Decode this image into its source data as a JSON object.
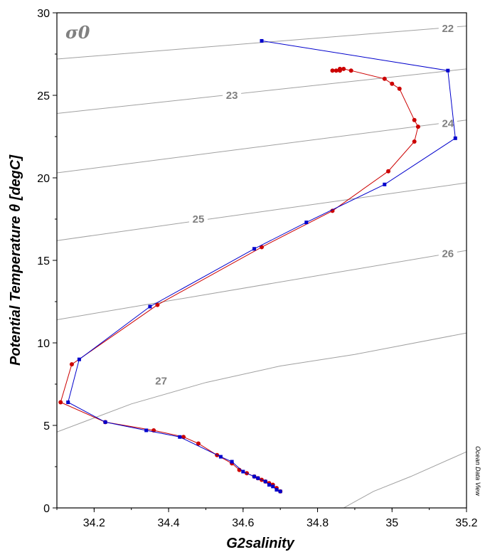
{
  "chart_data": {
    "type": "scatter",
    "xlabel": "G2salinity",
    "ylabel": "Potential Temperature θ [degC]",
    "xlim": [
      34.1,
      35.2
    ],
    "ylim": [
      0,
      30
    ],
    "xticks": [
      34.2,
      34.4,
      34.6,
      34.8,
      35,
      35.2
    ],
    "yticks": [
      0,
      5,
      10,
      15,
      20,
      25,
      30
    ],
    "grid": false,
    "density_label": "σ0",
    "watermark": "Ocean Data View",
    "colors": {
      "contour": "#a0a0a0",
      "contour_label": "#808080",
      "series_red": "#cc0000",
      "series_blue": "#0000cc"
    },
    "contours": [
      {
        "label": "22",
        "points": [
          [
            34.1,
            27.2
          ],
          [
            35.2,
            29.2
          ]
        ],
        "label_at": [
          35.15,
          29.05
        ]
      },
      {
        "label": "23",
        "points": [
          [
            34.1,
            23.9
          ],
          [
            35.2,
            26.6
          ]
        ],
        "label_at": [
          34.57,
          25.0
        ]
      },
      {
        "label": "24",
        "points": [
          [
            34.1,
            20.3
          ],
          [
            35.2,
            23.5
          ]
        ],
        "label_at": [
          35.15,
          23.3
        ]
      },
      {
        "label": "25",
        "points": [
          [
            34.1,
            16.2
          ],
          [
            35.2,
            19.7
          ]
        ],
        "label_at": [
          34.48,
          17.5
        ]
      },
      {
        "label": "26",
        "points": [
          [
            34.1,
            11.4
          ],
          [
            35.2,
            15.6
          ]
        ],
        "label_at": [
          35.15,
          15.4
        ]
      },
      {
        "label": "27",
        "points": [
          [
            34.1,
            4.6
          ],
          [
            34.3,
            6.3
          ],
          [
            34.5,
            7.6
          ],
          [
            34.7,
            8.6
          ],
          [
            34.9,
            9.3
          ],
          [
            35.2,
            10.6
          ]
        ],
        "label_at": [
          34.38,
          7.7
        ]
      },
      {
        "label": "",
        "points": [
          [
            34.87,
            0.0
          ],
          [
            34.95,
            1.0
          ],
          [
            35.05,
            1.9
          ],
          [
            35.2,
            3.4
          ]
        ]
      }
    ],
    "series": [
      {
        "color": "#cc0000",
        "marker": "circle",
        "x": [
          34.7,
          34.69,
          34.68,
          34.67,
          34.66,
          34.65,
          34.64,
          34.63,
          34.61,
          34.59,
          34.57,
          34.53,
          34.48,
          34.44,
          34.36,
          34.23,
          34.11,
          34.14,
          34.37,
          34.65,
          34.84,
          34.99,
          35.06,
          35.07,
          35.06,
          35.02,
          35.0,
          34.98,
          34.89,
          34.87,
          34.86,
          34.86,
          34.85,
          34.84
        ],
        "y": [
          1.0,
          1.2,
          1.4,
          1.5,
          1.6,
          1.7,
          1.8,
          1.9,
          2.1,
          2.3,
          2.7,
          3.2,
          3.9,
          4.3,
          4.7,
          5.2,
          6.4,
          8.7,
          12.3,
          15.8,
          18.0,
          20.4,
          22.2,
          23.1,
          23.5,
          25.4,
          25.7,
          26.0,
          26.5,
          26.6,
          26.5,
          26.6,
          26.5,
          26.5
        ]
      },
      {
        "color": "#0000cc",
        "marker": "square",
        "x": [
          34.7,
          34.69,
          34.68,
          34.67,
          34.66,
          34.64,
          34.63,
          34.6,
          34.57,
          34.54,
          34.43,
          34.34,
          34.23,
          34.13,
          34.16,
          34.35,
          34.63,
          34.77,
          34.98,
          35.17,
          35.15,
          34.65
        ],
        "y": [
          1.0,
          1.1,
          1.3,
          1.4,
          1.6,
          1.8,
          1.9,
          2.2,
          2.8,
          3.1,
          4.3,
          4.7,
          5.2,
          6.4,
          9.0,
          12.2,
          15.7,
          17.3,
          19.6,
          22.4,
          26.5,
          28.3
        ]
      }
    ]
  }
}
